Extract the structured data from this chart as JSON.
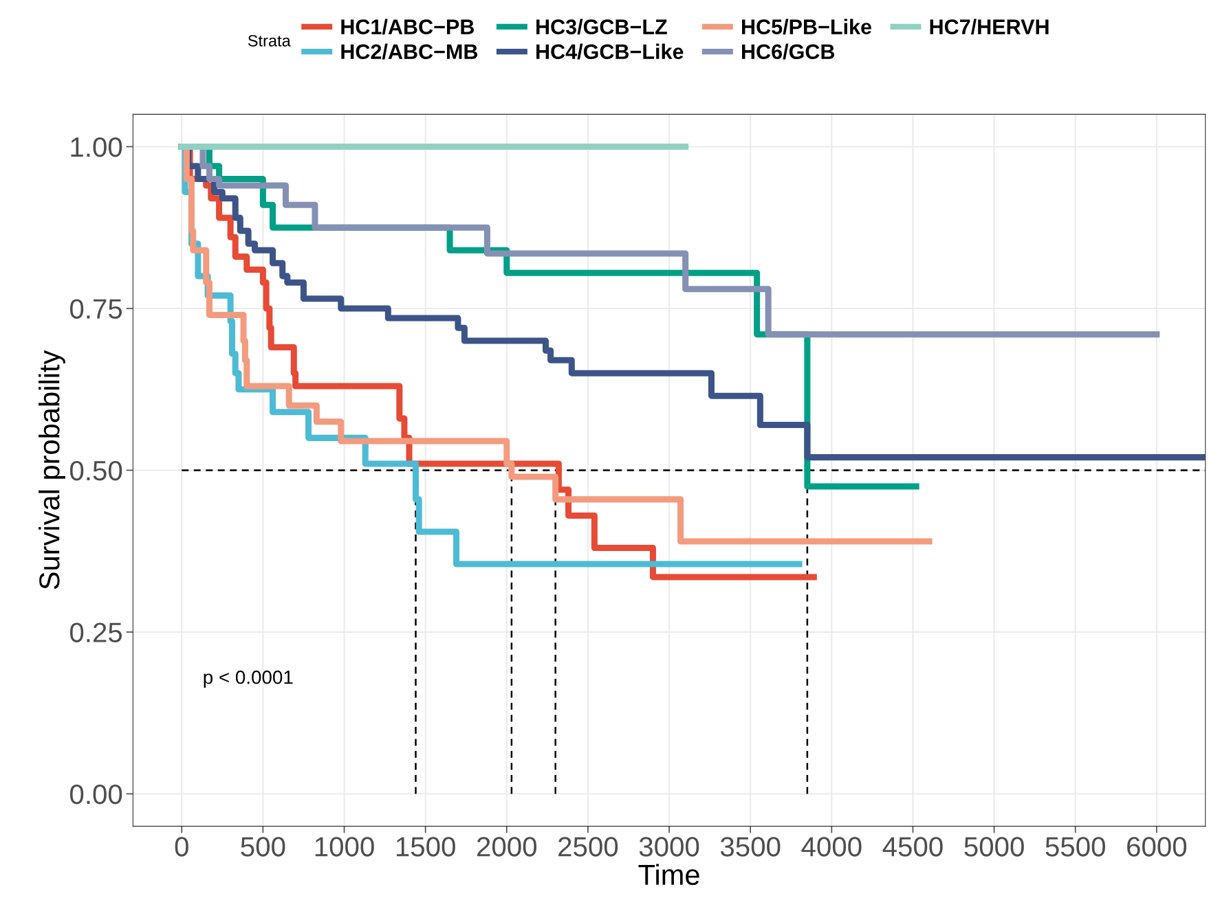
{
  "chart_data": {
    "type": "step",
    "xlabel": "Time",
    "ylabel": "Survival probability",
    "legend_title": "Strata",
    "legend": "top",
    "xlim": [
      -300,
      6300
    ],
    "ylim": [
      -0.05,
      1.05
    ],
    "xticks": [
      0,
      500,
      1000,
      1500,
      2000,
      2500,
      3000,
      3500,
      4000,
      4500,
      5000,
      5500,
      6000
    ],
    "yticks": [
      {
        "value": 0,
        "label": "0.00"
      },
      {
        "value": 0.25,
        "label": "0.25"
      },
      {
        "value": 0.5,
        "label": "0.50"
      },
      {
        "value": 0.75,
        "label": "0.75"
      },
      {
        "value": 1,
        "label": "1.00"
      }
    ],
    "grid": true,
    "series": [
      {
        "name": "HC1/ABC−PB",
        "color": "#e64b35",
        "x": [
          0,
          50,
          150,
          180,
          230,
          300,
          330,
          400,
          500,
          520,
          540,
          550,
          690,
          700,
          1340,
          1370,
          1400,
          2320,
          2380,
          2540,
          2900,
          3890
        ],
        "values": [
          1,
          0.95,
          0.94,
          0.92,
          0.89,
          0.86,
          0.83,
          0.81,
          0.79,
          0.75,
          0.72,
          0.69,
          0.65,
          0.63,
          0.58,
          0.55,
          0.51,
          0.47,
          0.43,
          0.38,
          0.335,
          0.335
        ]
      },
      {
        "name": "HC2/ABC−MB",
        "color": "#4dbbd5",
        "x": [
          0,
          20,
          60,
          100,
          160,
          300,
          310,
          330,
          350,
          560,
          780,
          1130,
          1440,
          1460,
          1690,
          3800
        ],
        "values": [
          1,
          0.93,
          0.85,
          0.8,
          0.77,
          0.73,
          0.68,
          0.65,
          0.625,
          0.59,
          0.55,
          0.51,
          0.455,
          0.405,
          0.355,
          0.355
        ]
      },
      {
        "name": "HC3/GCB−LZ",
        "color": "#00a087",
        "x": [
          0,
          170,
          230,
          500,
          560,
          1650,
          2000,
          3540,
          3850,
          4520
        ],
        "values": [
          1,
          0.97,
          0.95,
          0.91,
          0.875,
          0.84,
          0.805,
          0.71,
          0.475,
          0.475
        ]
      },
      {
        "name": "HC4/GCB−Like",
        "color": "#3c5488",
        "x": [
          0,
          40,
          100,
          200,
          250,
          330,
          360,
          410,
          450,
          560,
          620,
          650,
          750,
          980,
          1270,
          1700,
          1740,
          2240,
          2270,
          2400,
          3260,
          3560,
          3850,
          6300
        ],
        "values": [
          1,
          0.97,
          0.95,
          0.93,
          0.92,
          0.89,
          0.87,
          0.85,
          0.84,
          0.82,
          0.8,
          0.79,
          0.765,
          0.75,
          0.735,
          0.72,
          0.7,
          0.685,
          0.67,
          0.65,
          0.615,
          0.57,
          0.52,
          0.52
        ]
      },
      {
        "name": "HC5/PB−Like",
        "color": "#f39b7f",
        "x": [
          0,
          30,
          60,
          70,
          150,
          170,
          380,
          390,
          400,
          660,
          830,
          980,
          2000,
          2030,
          2300,
          3070,
          4600
        ],
        "values": [
          1,
          0.95,
          0.87,
          0.84,
          0.79,
          0.74,
          0.7,
          0.67,
          0.63,
          0.6,
          0.575,
          0.545,
          0.51,
          0.49,
          0.455,
          0.39,
          0.39
        ]
      },
      {
        "name": "HC6/GCB",
        "color": "#8491b4",
        "x": [
          0,
          130,
          170,
          230,
          640,
          820,
          1880,
          3100,
          3610,
          6000
        ],
        "values": [
          1,
          0.97,
          0.95,
          0.94,
          0.91,
          0.875,
          0.835,
          0.78,
          0.71,
          0.71
        ]
      },
      {
        "name": "HC7/HERVH",
        "color": "#91d1c2",
        "x": [
          0,
          3100
        ],
        "values": [
          1,
          1
        ]
      }
    ],
    "ref_lines": [
      {
        "axis": "y",
        "value": 0.5,
        "color": "#000000",
        "line_style": "dashed"
      },
      {
        "axis": "x",
        "value": 1440,
        "color": "#000000",
        "line_style": "dashed"
      },
      {
        "axis": "x",
        "value": 2030,
        "color": "#000000",
        "line_style": "dashed"
      },
      {
        "axis": "x",
        "value": 2300,
        "color": "#000000",
        "line_style": "dashed"
      },
      {
        "axis": "x",
        "value": 3850,
        "color": "#000000",
        "line_style": "dashed"
      }
    ],
    "annotations": [
      "p < 0.0001"
    ]
  }
}
